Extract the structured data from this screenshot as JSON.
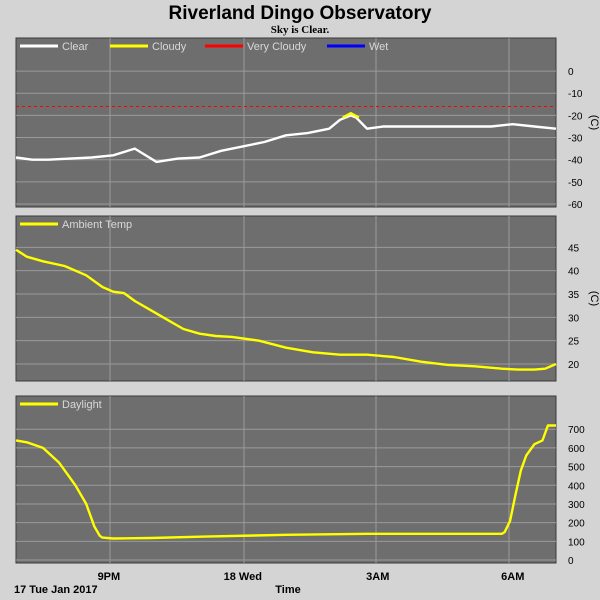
{
  "title": "Riverland Dingo Observatory",
  "subtitle": "Sky is Clear.",
  "footer": {
    "date_label": "17 Tue Jan 2017",
    "time_label": "Time"
  },
  "colors": {
    "page_bg": "#d4d4d4",
    "panel_bg": "#6e6e6e",
    "grid": "#9a9a9a",
    "yellow": "#ffff00",
    "white": "#ffffff",
    "red": "#ff0000",
    "blue": "#0000ff"
  },
  "chart_data": [
    {
      "type": "line",
      "panel": "sky",
      "legend": [
        "Clear",
        "Cloudy",
        "Very Cloudy",
        "Wet"
      ],
      "legend_colors": [
        "#ffffff",
        "#ffff00",
        "#ff0000",
        "#0000ff"
      ],
      "unit": "(C)",
      "ylim": [
        -60,
        5
      ],
      "yticks": [
        0,
        -10,
        -20,
        -30,
        -40,
        -50,
        -60
      ],
      "xlim": [
        0,
        10.0
      ],
      "threshold": {
        "y": -16,
        "color": "#ff0000",
        "style": "dashed"
      },
      "series": [
        {
          "name": "Clear",
          "color": "#ffffff",
          "x": [
            0,
            0.3,
            0.6,
            1.0,
            1.4,
            1.8,
            2.2,
            2.6,
            3.0,
            3.4,
            3.8,
            4.2,
            4.6,
            5.0,
            5.4,
            5.8,
            6.0,
            6.2,
            6.3,
            6.5,
            6.8,
            7.2,
            7.6,
            8.0,
            8.4,
            8.8,
            9.2,
            9.6,
            10.0
          ],
          "y": [
            -39,
            -40,
            -40,
            -39.5,
            -39,
            -38,
            -35,
            -41,
            -39.5,
            -39,
            -36,
            -34,
            -32,
            -29,
            -28,
            -26,
            -22,
            -20,
            -21,
            -26,
            -25,
            -25,
            -25,
            -25,
            -25,
            -25,
            -24,
            -25,
            -26
          ]
        },
        {
          "name": "Cloudy",
          "color": "#ffff00",
          "x": [
            6.05,
            6.2,
            6.35
          ],
          "y": [
            -21,
            -19,
            -21
          ]
        }
      ]
    },
    {
      "type": "line",
      "panel": "ambient",
      "legend": [
        "Ambient Temp"
      ],
      "legend_colors": [
        "#ffff00"
      ],
      "unit": "(C)",
      "ylim": [
        17,
        47
      ],
      "yticks": [
        45,
        40,
        35,
        30,
        25,
        20
      ],
      "xlim": [
        0,
        10.0
      ],
      "series": [
        {
          "name": "Ambient Temp",
          "color": "#ffff00",
          "x": [
            0,
            0.2,
            0.5,
            0.9,
            1.3,
            1.6,
            1.8,
            2.0,
            2.2,
            2.5,
            2.8,
            3.1,
            3.4,
            3.7,
            4.0,
            4.5,
            5.0,
            5.5,
            6.0,
            6.5,
            7.0,
            7.5,
            8.0,
            8.5,
            9.0,
            9.3,
            9.6,
            9.8,
            10.0
          ],
          "y": [
            44.5,
            43,
            42,
            41,
            39,
            36.5,
            35.5,
            35.2,
            33.5,
            31.5,
            29.5,
            27.5,
            26.5,
            26,
            25.8,
            25,
            23.5,
            22.5,
            22,
            22,
            21.5,
            20.5,
            19.8,
            19.5,
            19,
            18.8,
            18.8,
            19,
            20
          ]
        }
      ]
    },
    {
      "type": "line",
      "panel": "daylight",
      "legend": [
        "Daylight"
      ],
      "legend_colors": [
        "#ffff00"
      ],
      "unit": "",
      "ylim": [
        0,
        760
      ],
      "yticks": [
        700,
        600,
        500,
        400,
        300,
        200,
        100,
        0
      ],
      "xlim": [
        0,
        10.0
      ],
      "xticks": [
        {
          "x": 1.72,
          "label": "9PM"
        },
        {
          "x": 4.2,
          "label": "18 Wed"
        },
        {
          "x": 6.7,
          "label": "3AM"
        },
        {
          "x": 9.2,
          "label": "6AM"
        }
      ],
      "series": [
        {
          "name": "Daylight",
          "color": "#ffff00",
          "x": [
            0,
            0.2,
            0.5,
            0.8,
            1.1,
            1.3,
            1.45,
            1.55,
            1.6,
            1.8,
            2.5,
            3.5,
            5.0,
            6.5,
            8.0,
            9.0,
            9.05,
            9.15,
            9.25,
            9.35,
            9.45,
            9.6,
            9.75,
            9.85,
            10.0
          ],
          "y": [
            640,
            630,
            600,
            520,
            400,
            300,
            180,
            130,
            120,
            115,
            118,
            125,
            135,
            140,
            140,
            140,
            150,
            210,
            350,
            480,
            560,
            620,
            640,
            720,
            720
          ]
        }
      ]
    }
  ]
}
